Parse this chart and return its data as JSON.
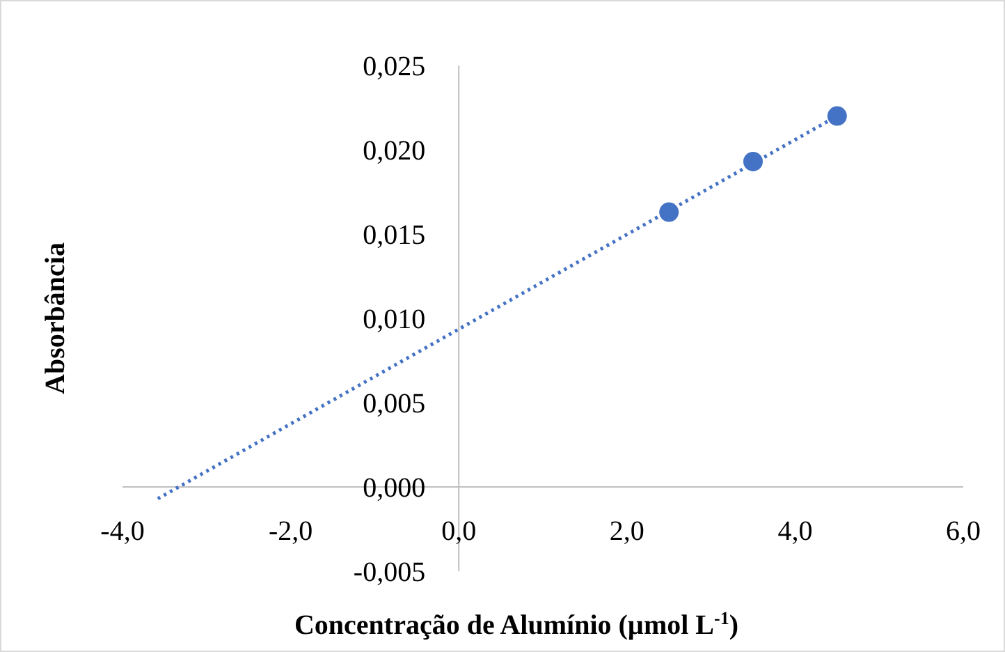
{
  "chart_data": {
    "type": "scatter",
    "xlabel": "Concentração de Alumínio (µmol L$^{-1}$)",
    "ylabel": "Absorbância",
    "xlim": [
      -4,
      6
    ],
    "ylim": [
      -0.005,
      0.025
    ],
    "xticks": [
      {
        "value": -4,
        "label": "-4,0"
      },
      {
        "value": -2,
        "label": "-2,0"
      },
      {
        "value": 0,
        "label": "0,0"
      },
      {
        "value": 2,
        "label": "2,0"
      },
      {
        "value": 4,
        "label": "4,0"
      },
      {
        "value": 6,
        "label": "6,0"
      }
    ],
    "yticks": [
      {
        "value": -0.005,
        "label": "-0,005"
      },
      {
        "value": 0,
        "label": "0,000"
      },
      {
        "value": 0.005,
        "label": "0,005"
      },
      {
        "value": 0.01,
        "label": "0,010"
      },
      {
        "value": 0.015,
        "label": "0,015"
      },
      {
        "value": 0.02,
        "label": "0,020"
      },
      {
        "value": 0.025,
        "label": "0,025"
      }
    ],
    "series": [
      {
        "color": "#4472c4",
        "marker": "circle",
        "x": [
          2.5,
          3.5,
          4.5
        ],
        "values": [
          0.0163,
          0.0193,
          0.022
        ]
      },
      {
        "type": "line",
        "color": "#4472c4",
        "marker": "none",
        "line_style": "dotted",
        "x": [
          -3.58,
          4.5
        ],
        "values": [
          -0.0007,
          0.022
        ]
      }
    ]
  }
}
